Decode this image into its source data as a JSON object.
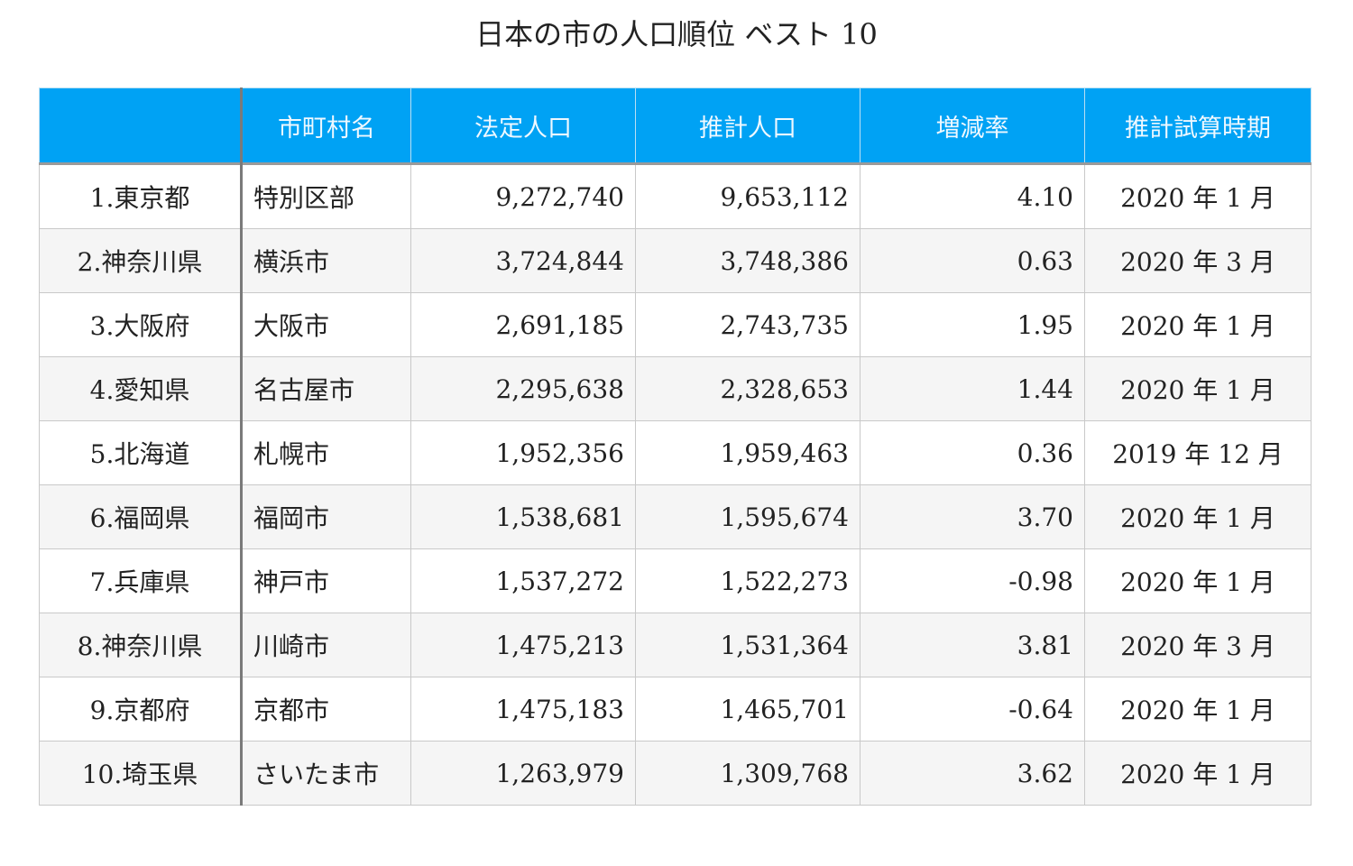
{
  "title": "日本の市の人口順位 ベスト 10",
  "table": {
    "headers": [
      "",
      "市町村名",
      "法定人口",
      "推計人口",
      "増減率",
      "推計試算時期"
    ],
    "rows": [
      {
        "rank": "1.東京都",
        "city": "特別区部",
        "legal": "9,272,740",
        "estimated": "9,653,112",
        "rate": "4.10",
        "period": "2020 年 1 月"
      },
      {
        "rank": "2.神奈川県",
        "city": "横浜市",
        "legal": "3,724,844",
        "estimated": "3,748,386",
        "rate": "0.63",
        "period": "2020 年 3 月"
      },
      {
        "rank": "3.大阪府",
        "city": "大阪市",
        "legal": "2,691,185",
        "estimated": "2,743,735",
        "rate": "1.95",
        "period": "2020 年 1 月"
      },
      {
        "rank": "4.愛知県",
        "city": "名古屋市",
        "legal": "2,295,638",
        "estimated": "2,328,653",
        "rate": "1.44",
        "period": "2020 年 1 月"
      },
      {
        "rank": "5.北海道",
        "city": "札幌市",
        "legal": "1,952,356",
        "estimated": "1,959,463",
        "rate": "0.36",
        "period": "2019 年 12 月"
      },
      {
        "rank": "6.福岡県",
        "city": "福岡市",
        "legal": "1,538,681",
        "estimated": "1,595,674",
        "rate": "3.70",
        "period": "2020 年 1 月"
      },
      {
        "rank": "7.兵庫県",
        "city": "神戸市",
        "legal": "1,537,272",
        "estimated": "1,522,273",
        "rate": "-0.98",
        "period": "2020 年 1 月"
      },
      {
        "rank": "8.神奈川県",
        "city": "川崎市",
        "legal": "1,475,213",
        "estimated": "1,531,364",
        "rate": "3.81",
        "period": "2020 年 3 月"
      },
      {
        "rank": "9.京都府",
        "city": "京都市",
        "legal": "1,475,183",
        "estimated": "1,465,701",
        "rate": "-0.64",
        "period": "2020 年 1 月"
      },
      {
        "rank": "10.埼玉県",
        "city": "さいたま市",
        "legal": "1,263,979",
        "estimated": "1,309,768",
        "rate": "3.62",
        "period": "2020 年 1 月"
      }
    ]
  },
  "colors": {
    "header_bg": "#00a2f4",
    "header_text": "#eef8ff",
    "row_alt_bg": "#f5f5f5",
    "border": "#c9c9c9"
  }
}
